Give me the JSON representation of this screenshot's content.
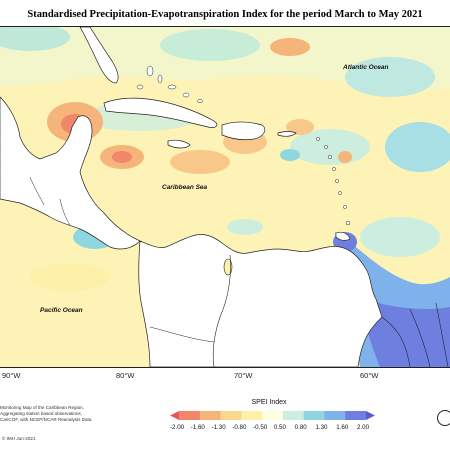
{
  "title": "Standardised Precipitation-Evapotranspiration Index for the period March to May 2021",
  "map": {
    "labels": {
      "atlantic": "Atlantic Ocean",
      "caribbean": "Caribbean Sea",
      "pacific": "Pacific Ocean"
    },
    "longitudes": [
      "90°W",
      "80°W",
      "70°W",
      "60°W"
    ]
  },
  "legend": {
    "title": "SPEI Index",
    "ticks": [
      "-2.00",
      "-1.60",
      "-1.30",
      "-0.80",
      "-0.50",
      "0.50",
      "0.80",
      "1.30",
      "1.60",
      "2.00"
    ],
    "colors": [
      "#e8545a",
      "#f0866a",
      "#f5b47a",
      "#fad78a",
      "#fdf0a8",
      "#ffffe0",
      "#cdeede",
      "#8fd7e0",
      "#7fb2ea",
      "#6f7fe0",
      "#5a5cd0"
    ]
  },
  "credits": {
    "line1": "Monitoring Map of the Caribbean Region.",
    "line2": "Aggregating station based observations,",
    "line3": "CariCOF, with NCEP/NCAR Reanalysis Data",
    "copyright": "© IMH Jun-2021"
  }
}
